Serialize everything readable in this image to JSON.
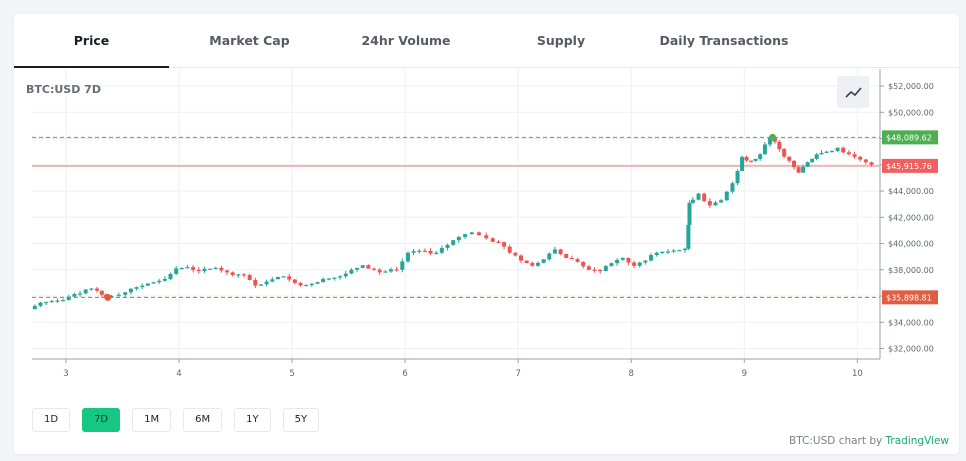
{
  "tabs": [
    {
      "label": "Price",
      "active": true
    },
    {
      "label": "Market Cap",
      "active": false
    },
    {
      "label": "24hr Volume",
      "active": false
    },
    {
      "label": "Supply",
      "active": false
    },
    {
      "label": "Daily Transactions",
      "active": false
    }
  ],
  "ranges": [
    {
      "label": "1D",
      "active": false
    },
    {
      "label": "7D",
      "active": true
    },
    {
      "label": "1M",
      "active": false
    },
    {
      "label": "6M",
      "active": false
    },
    {
      "label": "1Y",
      "active": false
    },
    {
      "label": "5Y",
      "active": false
    }
  ],
  "attribution": {
    "prefix": "BTC:USD chart by ",
    "brand": "TradingView"
  },
  "icons": {
    "chart_style": "line-chart-icon"
  },
  "colors": {
    "up": "#26a69a",
    "down": "#ef5350",
    "high": "#4caf50",
    "current": "#f06060",
    "low": "#e05d44",
    "accent": "#16c784"
  },
  "chart_data": {
    "type": "candlestick",
    "title": "BTC:USD 7D",
    "x_ticks": [
      "3",
      "4",
      "5",
      "6",
      "7",
      "8",
      "9",
      "10"
    ],
    "y_ticks": [
      "$32,000.00",
      "$34,000.00",
      "$36,000.00",
      "$38,000.00",
      "$40,000.00",
      "$42,000.00",
      "$44,000.00",
      "$46,000.00",
      "$48,000.00",
      "$50,000.00",
      "$52,000.00"
    ],
    "ylim": [
      31200,
      53300
    ],
    "xlim": [
      2.7,
      10.2
    ],
    "grid": true,
    "markers": {
      "high": {
        "label": "$48,089.62",
        "value": 48089.62,
        "x": 9.25
      },
      "current": {
        "label": "$45,915.76",
        "value": 45915.76
      },
      "low": {
        "label": "$35,898.81",
        "value": 35898.81,
        "x": 3.37
      }
    },
    "series": [
      {
        "x": 2.7,
        "y": 35000
      },
      {
        "x": 2.8,
        "y": 35500
      },
      {
        "x": 2.95,
        "y": 35650
      },
      {
        "x": 3.05,
        "y": 35950
      },
      {
        "x": 3.2,
        "y": 36500
      },
      {
        "x": 3.3,
        "y": 36400
      },
      {
        "x": 3.37,
        "y": 35900
      },
      {
        "x": 3.5,
        "y": 36100
      },
      {
        "x": 3.6,
        "y": 36550
      },
      {
        "x": 3.75,
        "y": 36950
      },
      {
        "x": 3.9,
        "y": 37300
      },
      {
        "x": 4.0,
        "y": 38100
      },
      {
        "x": 4.1,
        "y": 38200
      },
      {
        "x": 4.2,
        "y": 37900
      },
      {
        "x": 4.35,
        "y": 38150
      },
      {
        "x": 4.45,
        "y": 37800
      },
      {
        "x": 4.6,
        "y": 37600
      },
      {
        "x": 4.7,
        "y": 36800
      },
      {
        "x": 4.8,
        "y": 37100
      },
      {
        "x": 4.95,
        "y": 37500
      },
      {
        "x": 5.05,
        "y": 37000
      },
      {
        "x": 5.15,
        "y": 36850
      },
      {
        "x": 5.3,
        "y": 37300
      },
      {
        "x": 5.45,
        "y": 37500
      },
      {
        "x": 5.55,
        "y": 38000
      },
      {
        "x": 5.65,
        "y": 38350
      },
      {
        "x": 5.8,
        "y": 37800
      },
      {
        "x": 5.95,
        "y": 38000
      },
      {
        "x": 6.05,
        "y": 39300
      },
      {
        "x": 6.15,
        "y": 39450
      },
      {
        "x": 6.3,
        "y": 39300
      },
      {
        "x": 6.4,
        "y": 39900
      },
      {
        "x": 6.5,
        "y": 40500
      },
      {
        "x": 6.62,
        "y": 40850
      },
      {
        "x": 6.75,
        "y": 40400
      },
      {
        "x": 6.85,
        "y": 40100
      },
      {
        "x": 6.95,
        "y": 39300
      },
      {
        "x": 7.05,
        "y": 38700
      },
      {
        "x": 7.15,
        "y": 38300
      },
      {
        "x": 7.25,
        "y": 38800
      },
      {
        "x": 7.35,
        "y": 39550
      },
      {
        "x": 7.45,
        "y": 38900
      },
      {
        "x": 7.55,
        "y": 38600
      },
      {
        "x": 7.65,
        "y": 38000
      },
      {
        "x": 7.75,
        "y": 37900
      },
      {
        "x": 7.85,
        "y": 38500
      },
      {
        "x": 7.95,
        "y": 38900
      },
      {
        "x": 8.05,
        "y": 38300
      },
      {
        "x": 8.15,
        "y": 38700
      },
      {
        "x": 8.25,
        "y": 39300
      },
      {
        "x": 8.35,
        "y": 39400
      },
      {
        "x": 8.5,
        "y": 39600
      },
      {
        "x": 8.52,
        "y": 43100
      },
      {
        "x": 8.62,
        "y": 43800
      },
      {
        "x": 8.72,
        "y": 42900
      },
      {
        "x": 8.82,
        "y": 43300
      },
      {
        "x": 8.92,
        "y": 44600
      },
      {
        "x": 9.0,
        "y": 46600
      },
      {
        "x": 9.08,
        "y": 46300
      },
      {
        "x": 9.16,
        "y": 46800
      },
      {
        "x": 9.25,
        "y": 48050
      },
      {
        "x": 9.33,
        "y": 47200
      },
      {
        "x": 9.42,
        "y": 46300
      },
      {
        "x": 9.5,
        "y": 45400
      },
      {
        "x": 9.58,
        "y": 46200
      },
      {
        "x": 9.66,
        "y": 46800
      },
      {
        "x": 9.75,
        "y": 47000
      },
      {
        "x": 9.85,
        "y": 47300
      },
      {
        "x": 9.95,
        "y": 46800
      },
      {
        "x": 10.05,
        "y": 46400
      },
      {
        "x": 10.15,
        "y": 46000
      }
    ]
  }
}
